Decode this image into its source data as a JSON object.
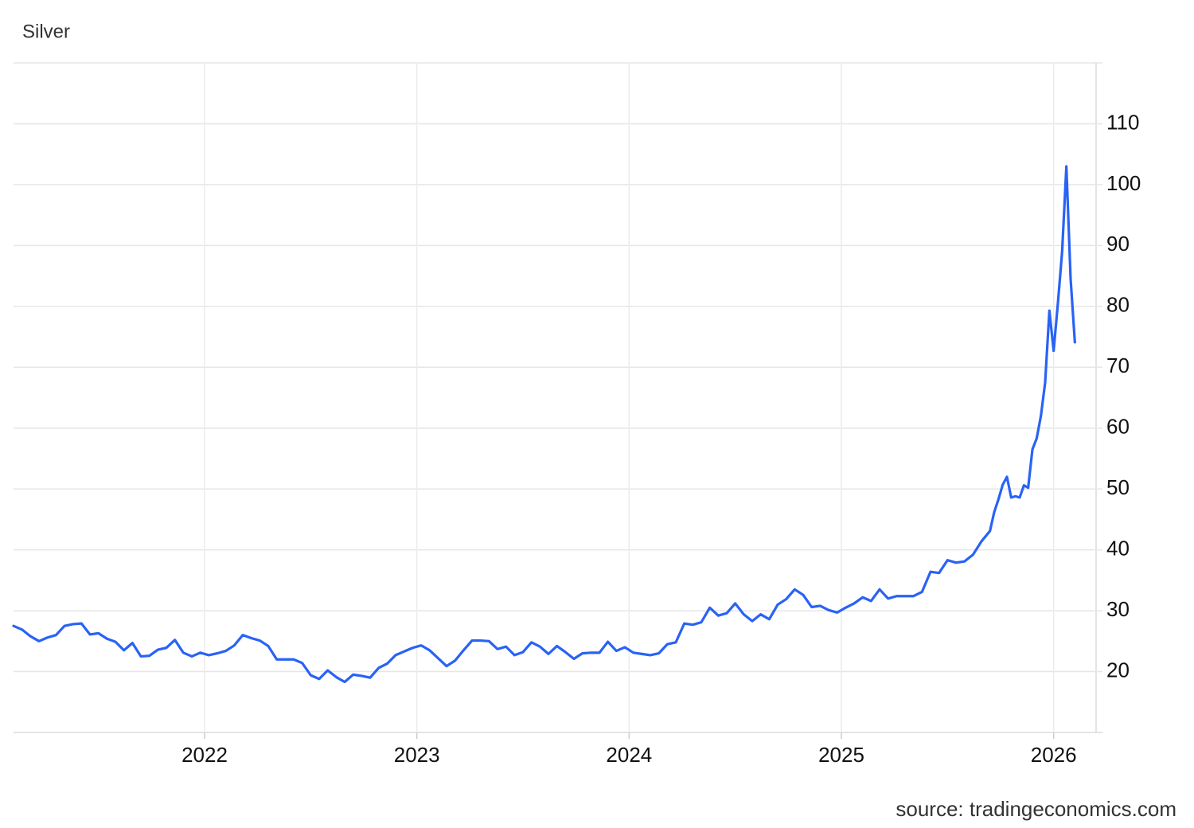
{
  "chart_data": {
    "type": "line",
    "title": "Silver",
    "source": "source: tradingeconomics.com",
    "color": "#2962f6",
    "grid": true,
    "xlim": [
      2021.1,
      2026.2
    ],
    "xticks": [
      2022,
      2023,
      2024,
      2025,
      2026
    ],
    "ylim": [
      10,
      120
    ],
    "yticks": [
      20,
      30,
      40,
      50,
      60,
      70,
      80,
      90,
      100,
      110
    ],
    "x": [
      2021.1,
      2021.14,
      2021.18,
      2021.22,
      2021.26,
      2021.3,
      2021.34,
      2021.38,
      2021.42,
      2021.46,
      2021.5,
      2021.54,
      2021.58,
      2021.62,
      2021.66,
      2021.7,
      2021.74,
      2021.78,
      2021.82,
      2021.86,
      2021.9,
      2021.94,
      2021.98,
      2022.02,
      2022.06,
      2022.1,
      2022.14,
      2022.18,
      2022.22,
      2022.26,
      2022.3,
      2022.34,
      2022.38,
      2022.42,
      2022.46,
      2022.5,
      2022.54,
      2022.58,
      2022.62,
      2022.66,
      2022.7,
      2022.74,
      2022.78,
      2022.82,
      2022.86,
      2022.9,
      2022.94,
      2022.98,
      2023.02,
      2023.06,
      2023.1,
      2023.14,
      2023.18,
      2023.22,
      2023.26,
      2023.3,
      2023.34,
      2023.38,
      2023.42,
      2023.46,
      2023.5,
      2023.54,
      2023.58,
      2023.62,
      2023.66,
      2023.7,
      2023.74,
      2023.78,
      2023.82,
      2023.86,
      2023.9,
      2023.94,
      2023.98,
      2024.02,
      2024.06,
      2024.1,
      2024.14,
      2024.18,
      2024.22,
      2024.26,
      2024.3,
      2024.34,
      2024.38,
      2024.42,
      2024.46,
      2024.5,
      2024.54,
      2024.58,
      2024.62,
      2024.66,
      2024.7,
      2024.74,
      2024.78,
      2024.82,
      2024.86,
      2024.9,
      2024.94,
      2024.98,
      2025.02,
      2025.06,
      2025.1,
      2025.14,
      2025.18,
      2025.22,
      2025.26,
      2025.3,
      2025.34,
      2025.38,
      2025.42,
      2025.46,
      2025.5,
      2025.54,
      2025.58,
      2025.62,
      2025.66,
      2025.7,
      2025.72,
      2025.74,
      2025.76,
      2025.78,
      2025.8,
      2025.82,
      2025.84,
      2025.86,
      2025.88,
      2025.9,
      2025.92,
      2025.94,
      2025.96,
      2025.98,
      2026.0,
      2026.02,
      2026.04,
      2026.06,
      2026.08,
      2026.1
    ],
    "values": [
      27.5,
      26.9,
      25.8,
      25.0,
      25.6,
      26.0,
      27.5,
      27.8,
      27.9,
      26.1,
      26.3,
      25.4,
      24.9,
      23.5,
      24.7,
      22.5,
      22.6,
      23.6,
      23.9,
      25.2,
      23.1,
      22.5,
      23.1,
      22.7,
      23.0,
      23.4,
      24.3,
      26.0,
      25.5,
      25.1,
      24.2,
      22.0,
      22.0,
      22.0,
      21.4,
      19.4,
      18.8,
      20.2,
      19.1,
      18.3,
      19.5,
      19.3,
      19.0,
      20.6,
      21.3,
      22.7,
      23.3,
      23.9,
      24.3,
      23.5,
      22.2,
      20.9,
      21.8,
      23.5,
      25.1,
      25.1,
      25.0,
      23.7,
      24.1,
      22.7,
      23.2,
      24.8,
      24.1,
      22.9,
      24.2,
      23.2,
      22.1,
      23.0,
      23.1,
      23.1,
      24.9,
      23.4,
      24.0,
      23.1,
      22.9,
      22.7,
      23.0,
      24.5,
      24.8,
      27.9,
      27.7,
      28.1,
      30.5,
      29.2,
      29.6,
      31.2,
      29.4,
      28.3,
      29.4,
      28.6,
      31.0,
      31.9,
      33.5,
      32.6,
      30.6,
      30.8,
      30.1,
      29.7,
      30.5,
      31.2,
      32.2,
      31.6,
      33.5,
      32.0,
      32.4,
      32.4,
      32.4,
      33.1,
      36.4,
      36.2,
      38.3,
      37.9,
      38.1,
      39.2,
      41.4,
      43.1,
      46.2,
      48.3,
      50.7,
      52.0,
      48.6,
      48.8,
      48.6,
      50.6,
      50.2,
      56.5,
      58.3,
      62.0,
      67.5,
      79.3,
      72.7,
      80.5,
      89.0,
      103.0,
      84.5,
      74.1
    ]
  }
}
